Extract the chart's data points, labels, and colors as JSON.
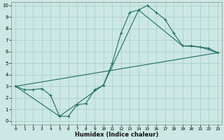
{
  "xlabel": "Humidex (Indice chaleur)",
  "xlim": [
    0,
    23
  ],
  "ylim": [
    0,
    10
  ],
  "xticks": [
    0,
    1,
    2,
    3,
    4,
    5,
    6,
    7,
    8,
    9,
    10,
    11,
    12,
    13,
    14,
    15,
    16,
    17,
    18,
    19,
    20,
    21,
    22,
    23
  ],
  "yticks": [
    0,
    1,
    2,
    3,
    4,
    5,
    6,
    7,
    8,
    9,
    10
  ],
  "bg_color": "#cce8e4",
  "grid_color": "#aacfcb",
  "line_color": "#1a6e65",
  "series_main": {
    "x": [
      0,
      1,
      2,
      3,
      4,
      5,
      6,
      7,
      8,
      9,
      10,
      11,
      12,
      13,
      14,
      15,
      16,
      17,
      18,
      19,
      20,
      21,
      22,
      23
    ],
    "y": [
      3.0,
      2.7,
      2.7,
      2.8,
      2.2,
      0.4,
      0.4,
      1.4,
      1.5,
      2.7,
      3.1,
      5.0,
      7.6,
      9.4,
      9.6,
      10.0,
      9.4,
      8.8,
      7.6,
      6.5,
      6.5,
      6.4,
      6.3,
      5.9
    ]
  },
  "series_straight": {
    "x": [
      0,
      23
    ],
    "y": [
      3.0,
      5.9
    ]
  },
  "series_envelope": {
    "x": [
      0,
      5,
      10,
      14,
      19,
      21,
      23
    ],
    "y": [
      3.0,
      0.4,
      3.1,
      9.6,
      6.5,
      6.4,
      5.9
    ]
  }
}
